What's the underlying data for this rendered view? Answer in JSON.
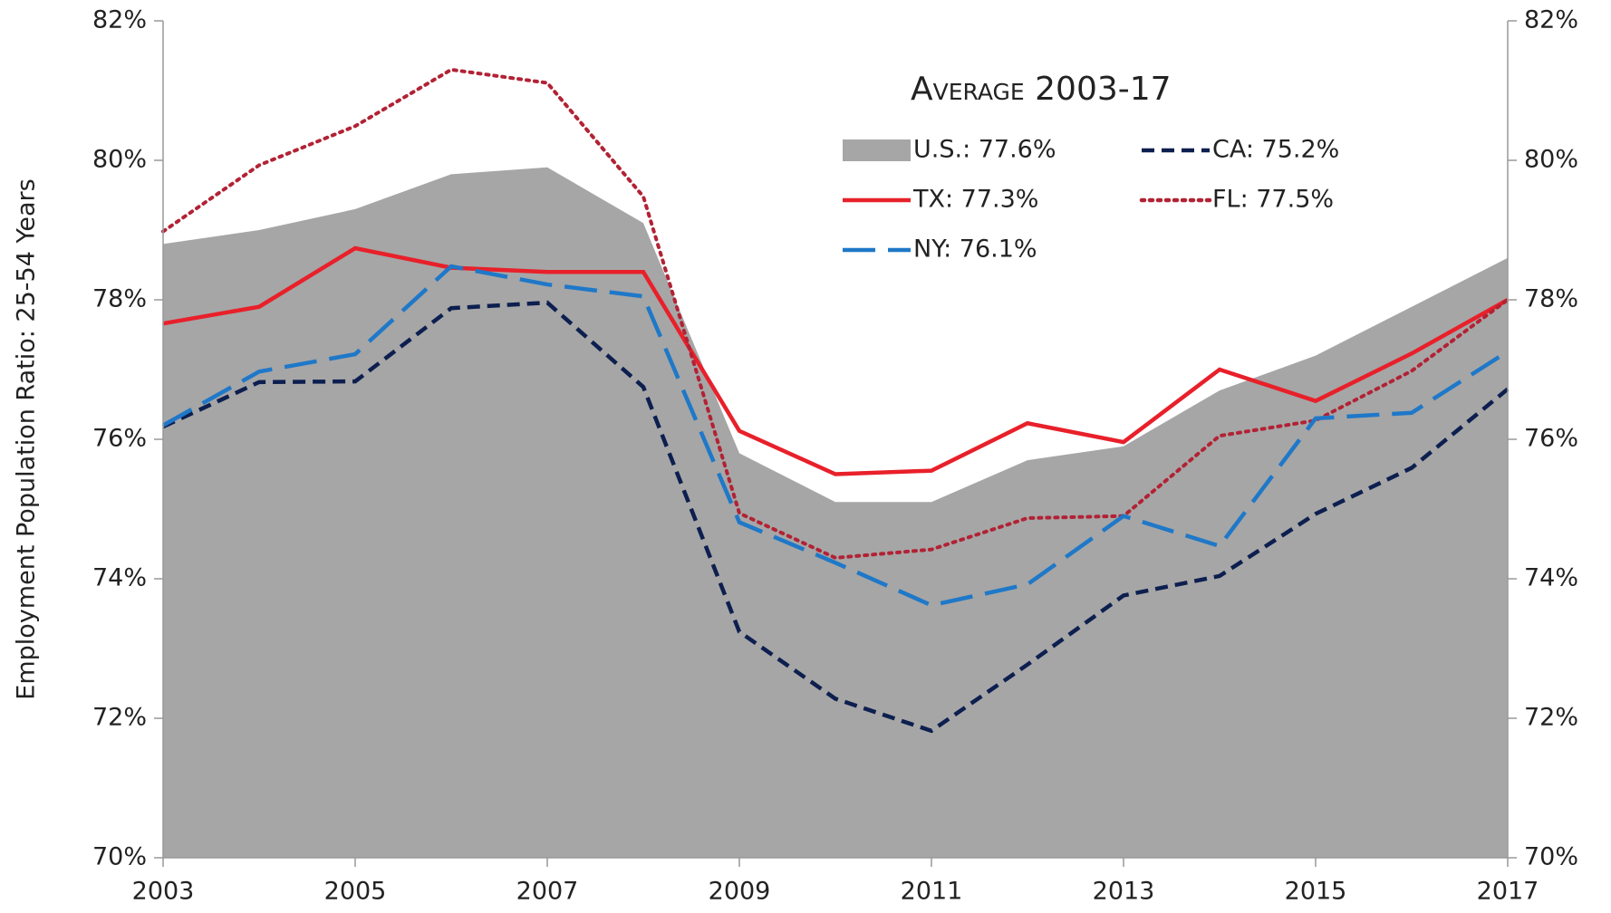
{
  "chart_data": {
    "type": "line",
    "y_label": "Employment Population Ratio: 25-54 Years",
    "legend_title": "Average 2003-17",
    "x": [
      2003,
      2004,
      2005,
      2006,
      2007,
      2008,
      2009,
      2010,
      2011,
      2012,
      2013,
      2014,
      2015,
      2016,
      2017
    ],
    "xlim": [
      2003,
      2017
    ],
    "xticks": [
      2003,
      2005,
      2007,
      2009,
      2011,
      2013,
      2015,
      2017
    ],
    "ylim": [
      70,
      82
    ],
    "yticks": [
      {
        "value": 70,
        "label": "70%"
      },
      {
        "value": 72,
        "label": "72%"
      },
      {
        "value": 74,
        "label": "74%"
      },
      {
        "value": 76,
        "label": "76%"
      },
      {
        "value": 78,
        "label": "78%"
      },
      {
        "value": 80,
        "label": "80%"
      },
      {
        "value": 82,
        "label": "82%"
      }
    ],
    "y2lim": [
      70,
      82
    ],
    "y2ticks": [
      {
        "value": 70,
        "label": "70%"
      },
      {
        "value": 72,
        "label": "72%"
      },
      {
        "value": 74,
        "label": "74%"
      },
      {
        "value": 76,
        "label": "76%"
      },
      {
        "value": 78,
        "label": "78%"
      },
      {
        "value": 80,
        "label": "80%"
      },
      {
        "value": 82,
        "label": "82%"
      }
    ],
    "grid": false,
    "series": [
      {
        "name": "U.S.: 77.6%",
        "color": "#a6a6a6",
        "style": "area",
        "values": [
          78.8,
          79.0,
          79.3,
          79.8,
          79.9,
          79.1,
          75.8,
          75.1,
          75.1,
          75.7,
          75.9,
          76.7,
          77.2,
          77.9,
          78.6
        ]
      },
      {
        "name": "CA: 75.2%",
        "color": "#0d1f4f",
        "style": "dashed",
        "values": [
          76.18,
          76.82,
          76.83,
          77.88,
          77.96,
          76.75,
          73.24,
          72.28,
          71.82,
          72.77,
          73.76,
          74.04,
          74.93,
          75.59,
          76.72
        ]
      },
      {
        "name": "TX: 77.3%",
        "color": "#e8202a",
        "style": "solid",
        "values": [
          77.66,
          77.9,
          78.74,
          78.46,
          78.4,
          78.4,
          76.12,
          75.5,
          75.55,
          76.23,
          75.96,
          77.0,
          76.55,
          77.23,
          78.0
        ]
      },
      {
        "name": "FL: 77.5%",
        "color": "#b22234",
        "style": "dotted",
        "values": [
          78.98,
          79.93,
          80.49,
          81.3,
          81.11,
          79.48,
          74.94,
          74.3,
          74.42,
          74.87,
          74.9,
          76.05,
          76.27,
          76.98,
          78.0
        ]
      },
      {
        "name": "NY: 76.1%",
        "color": "#1f78c8",
        "style": "longdash",
        "values": [
          76.2,
          76.97,
          77.22,
          78.48,
          78.22,
          78.05,
          74.81,
          74.23,
          73.62,
          73.92,
          74.9,
          74.47,
          76.3,
          76.38,
          77.26
        ]
      }
    ]
  }
}
